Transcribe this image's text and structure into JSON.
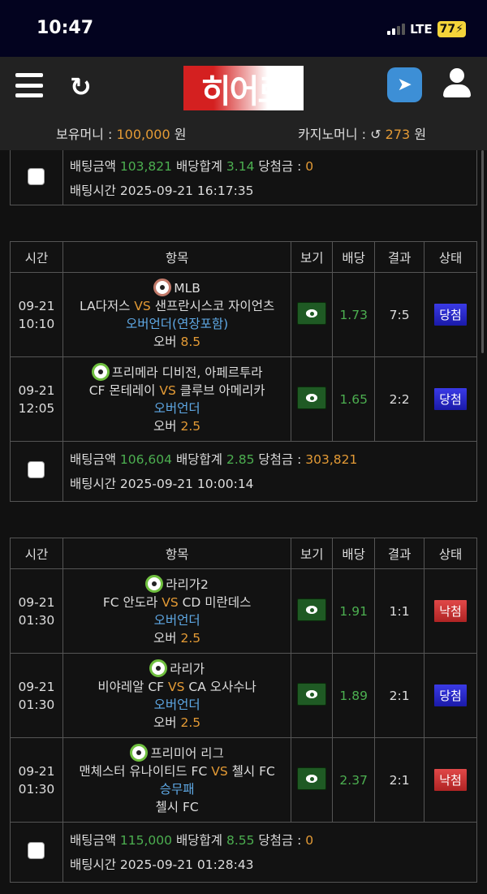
{
  "status_bar": {
    "time": "10:47",
    "network": "LTE",
    "battery": "77"
  },
  "header": {
    "logo": "히어로",
    "balance_label": "보유머니 :",
    "balance": "100,000",
    "balance_unit": "원",
    "casino_label": "카지노머니 :",
    "casino": "273",
    "casino_unit": "원"
  },
  "columns": [
    "시간",
    "항목",
    "보기",
    "배당",
    "결과",
    "상태"
  ],
  "labels": {
    "bet_amount": "배팅금액",
    "odds_total": "배당합계",
    "payout": "당첨금 :",
    "bet_time": "배팅시간",
    "vs": "VS"
  },
  "colors": {
    "win": "#2a2ad0",
    "lose": "#cc3333",
    "green": "#4caf50",
    "orange": "#e39a35",
    "blue": "#5fa9e6"
  },
  "slips": [
    {
      "rows": [],
      "bet_amount": "103,821",
      "odds_total": "3.14",
      "payout": "0",
      "bet_time": "2025-09-21 16:17:35"
    },
    {
      "rows": [
        {
          "date": "09-21",
          "time": "10:10",
          "sport": "baseball-icon",
          "league": "MLB",
          "home": "LA다저스",
          "away": "샌프란시스코 자이언츠",
          "market": "오버언더(연장포함)",
          "pick": "오버",
          "line": "8.5",
          "odds": "1.73",
          "result": "7:5",
          "status": "당첨"
        },
        {
          "date": "09-21",
          "time": "12:05",
          "sport": "soccer-icon",
          "league": "프리메라 디비전, 아페르투라",
          "home": "CF 몬테레이",
          "away": "클루브 아메리카",
          "market": "오버언더",
          "pick": "오버",
          "line": "2.5",
          "odds": "1.65",
          "result": "2:2",
          "status": "당첨"
        }
      ],
      "bet_amount": "106,604",
      "odds_total": "2.85",
      "payout": "303,821",
      "bet_time": "2025-09-21 10:00:14"
    },
    {
      "rows": [
        {
          "date": "09-21",
          "time": "01:30",
          "sport": "soccer-icon",
          "league": "라리가2",
          "home": "FC 안도라",
          "away": "CD 미란데스",
          "market": "오버언더",
          "pick": "오버",
          "line": "2.5",
          "odds": "1.91",
          "result": "1:1",
          "status": "낙첨"
        },
        {
          "date": "09-21",
          "time": "01:30",
          "sport": "soccer-icon",
          "league": "라리가",
          "home": "비야레알 CF",
          "away": "CA 오사수나",
          "market": "오버언더",
          "pick": "오버",
          "line": "2.5",
          "odds": "1.89",
          "result": "2:1",
          "status": "당첨"
        },
        {
          "date": "09-21",
          "time": "01:30",
          "sport": "soccer-icon",
          "league": "프리미어 리그",
          "home": "맨체스터 유나이티드 FC",
          "away": "첼시 FC",
          "market": "승무패",
          "pick": "첼시 FC",
          "line": "",
          "odds": "2.37",
          "result": "2:1",
          "status": "낙첨"
        }
      ],
      "bet_amount": "115,000",
      "odds_total": "8.55",
      "payout": "0",
      "bet_time": "2025-09-21 01:28:43"
    }
  ]
}
